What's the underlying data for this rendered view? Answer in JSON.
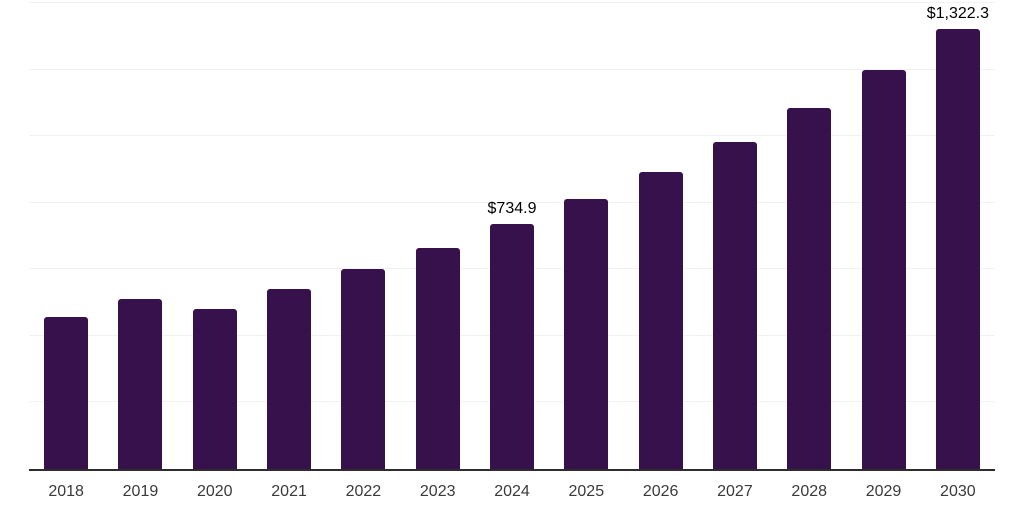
{
  "chart_data": {
    "type": "bar",
    "title": "",
    "xlabel": "",
    "ylabel": "",
    "categories": [
      "2018",
      "2019",
      "2020",
      "2021",
      "2022",
      "2023",
      "2024",
      "2025",
      "2026",
      "2027",
      "2028",
      "2029",
      "2030"
    ],
    "values": [
      458,
      512,
      481,
      542,
      601,
      663,
      734.9,
      812,
      892,
      982,
      1084,
      1200,
      1322.3
    ],
    "data_labels": {
      "2024": "$734.9",
      "2030": "$1,322.3"
    },
    "ylim": [
      0,
      1400
    ],
    "gridline_step": 200,
    "grid": true,
    "legend": false,
    "y_axis_ticks_visible": false,
    "colors": {
      "bar": "#36114b",
      "background": "#ffffff",
      "gridline": "#f2f2f2",
      "axis_line": "#2d2d2d",
      "data_label": "#000000",
      "tick_label": "#3a3a3a"
    }
  }
}
